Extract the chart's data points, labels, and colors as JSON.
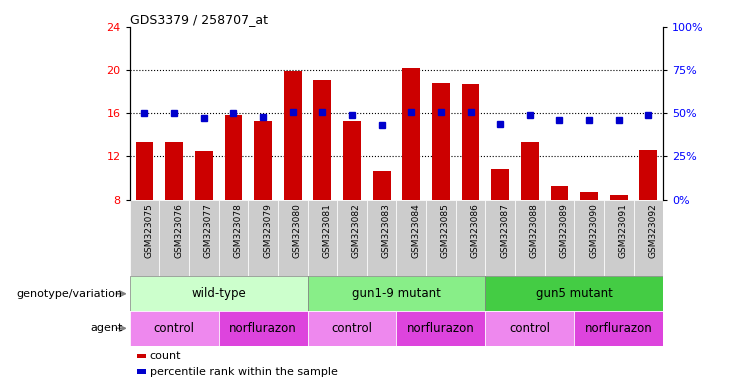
{
  "title": "GDS3379 / 258707_at",
  "samples": [
    "GSM323075",
    "GSM323076",
    "GSM323077",
    "GSM323078",
    "GSM323079",
    "GSM323080",
    "GSM323081",
    "GSM323082",
    "GSM323083",
    "GSM323084",
    "GSM323085",
    "GSM323086",
    "GSM323087",
    "GSM323088",
    "GSM323089",
    "GSM323090",
    "GSM323091",
    "GSM323092"
  ],
  "counts": [
    13.3,
    13.3,
    12.5,
    15.8,
    15.3,
    19.9,
    19.1,
    15.3,
    10.7,
    20.2,
    18.8,
    18.7,
    10.8,
    13.3,
    9.3,
    8.7,
    8.4,
    12.6
  ],
  "percentiles": [
    50,
    50,
    47,
    50,
    48,
    51,
    51,
    49,
    43,
    51,
    51,
    51,
    44,
    49,
    46,
    46,
    46,
    49
  ],
  "bar_color": "#cc0000",
  "dot_color": "#0000cc",
  "ylim_left": [
    8,
    24
  ],
  "ylim_right": [
    0,
    100
  ],
  "yticks_left": [
    8,
    12,
    16,
    20,
    24
  ],
  "yticks_right": [
    0,
    25,
    50,
    75,
    100
  ],
  "grid_values": [
    12,
    16,
    20
  ],
  "genotype_groups": [
    {
      "label": "wild-type",
      "start": 0,
      "end": 5,
      "color": "#ccffcc"
    },
    {
      "label": "gun1-9 mutant",
      "start": 6,
      "end": 11,
      "color": "#88ee88"
    },
    {
      "label": "gun5 mutant",
      "start": 12,
      "end": 17,
      "color": "#44cc44"
    }
  ],
  "agent_groups": [
    {
      "label": "control",
      "start": 0,
      "end": 2,
      "color": "#ee88ee"
    },
    {
      "label": "norflurazon",
      "start": 3,
      "end": 5,
      "color": "#dd44dd"
    },
    {
      "label": "control",
      "start": 6,
      "end": 8,
      "color": "#ee88ee"
    },
    {
      "label": "norflurazon",
      "start": 9,
      "end": 11,
      "color": "#dd44dd"
    },
    {
      "label": "control",
      "start": 12,
      "end": 14,
      "color": "#ee88ee"
    },
    {
      "label": "norflurazon",
      "start": 15,
      "end": 17,
      "color": "#dd44dd"
    }
  ],
  "genotype_label": "genotype/variation",
  "agent_label": "agent",
  "legend_count_label": "count",
  "legend_percentile_label": "percentile rank within the sample",
  "bar_width": 0.6,
  "xtick_bg": "#cccccc",
  "background_color": "#ffffff"
}
